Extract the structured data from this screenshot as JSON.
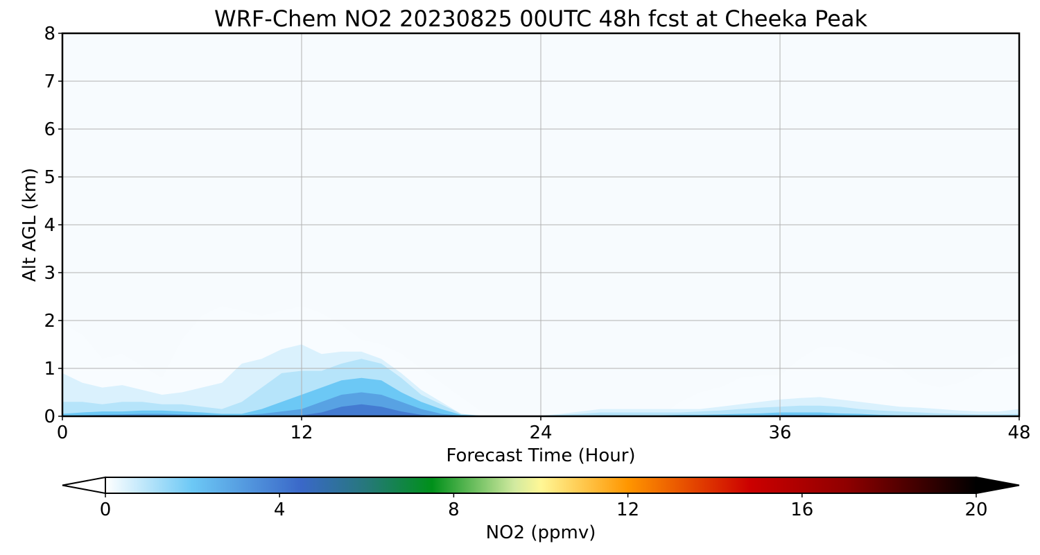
{
  "chart_data": {
    "type": "heatmap",
    "title": "WRF-Chem NO2  20230825 00UTC 48h fcst at Cheeka Peak",
    "xlabel": "Forecast Time (Hour)",
    "ylabel": "Alt AGL (km)",
    "xlim": [
      0,
      48
    ],
    "ylim": [
      0,
      8
    ],
    "xticks": [
      0,
      12,
      24,
      36,
      48
    ],
    "yticks": [
      0,
      1,
      2,
      3,
      4,
      5,
      6,
      7,
      8
    ],
    "grid": true,
    "colorbar": {
      "label": "NO2  (ppmv)",
      "min": 0,
      "max": 20,
      "ticks": [
        0,
        4,
        8,
        12,
        16,
        20
      ],
      "extend": "both",
      "stops": [
        {
          "v": 0,
          "c": "#ffffff"
        },
        {
          "v": 2,
          "c": "#6cc8f5"
        },
        {
          "v": 4.5,
          "c": "#3a68c8"
        },
        {
          "v": 6,
          "c": "#26787a"
        },
        {
          "v": 7.5,
          "c": "#00901a"
        },
        {
          "v": 9.4,
          "c": "#d2eaa0"
        },
        {
          "v": 10,
          "c": "#fff796"
        },
        {
          "v": 12,
          "c": "#ff9600"
        },
        {
          "v": 14.8,
          "c": "#cc0000"
        },
        {
          "v": 17,
          "c": "#900000"
        },
        {
          "v": 20,
          "c": "#000000"
        }
      ]
    },
    "contours": [
      {
        "level": 0.1,
        "x": [
          0,
          1,
          2,
          3,
          4,
          5,
          6,
          7,
          8,
          9,
          10,
          11,
          12,
          13,
          14,
          15,
          16,
          17,
          18,
          19,
          20,
          21,
          22,
          23,
          24,
          25,
          26,
          27,
          28,
          29,
          30,
          31,
          32,
          33,
          34,
          35,
          36,
          37,
          38,
          39,
          40,
          41,
          42,
          43,
          44,
          45,
          46,
          47,
          48
        ],
        "top": [
          1.95,
          1.7,
          1.2,
          1.3,
          1.05,
          0.8,
          1.6,
          2.1,
          2.3,
          2.2,
          2.1,
          2.2,
          2.3,
          2.15,
          1.9,
          1.6,
          1.5,
          1.3,
          1.0,
          0.7,
          0.4,
          0.1,
          0.02,
          0.02,
          0.02,
          0.02,
          0.02,
          0.02,
          0.02,
          0.02,
          0.02,
          0.3,
          0.5,
          0.6,
          0.8,
          0.85,
          0.85,
          1.2,
          1.45,
          1.45,
          1.3,
          1.2,
          1.0,
          0.7,
          0.6,
          0.7,
          0.9,
          1.2,
          1.3
        ]
      },
      {
        "level": 0.5,
        "x": [
          0,
          1,
          2,
          3,
          4,
          5,
          6,
          7,
          8,
          9,
          10,
          11,
          12,
          13,
          14,
          15,
          16,
          17,
          18,
          19,
          20,
          21,
          22,
          23,
          24,
          25,
          26,
          27,
          28,
          29,
          30,
          31,
          32,
          33,
          34,
          35,
          36,
          37,
          38,
          39,
          40,
          41,
          42,
          43,
          44,
          45,
          46,
          47,
          48
        ],
        "top": [
          0.9,
          0.7,
          0.6,
          0.65,
          0.55,
          0.45,
          0.5,
          0.6,
          0.7,
          1.1,
          1.2,
          1.4,
          1.5,
          1.3,
          1.35,
          1.35,
          1.2,
          0.9,
          0.55,
          0.3,
          0.05,
          0.01,
          0.01,
          0.01,
          0.01,
          0.05,
          0.1,
          0.15,
          0.15,
          0.15,
          0.15,
          0.15,
          0.15,
          0.2,
          0.25,
          0.3,
          0.35,
          0.38,
          0.4,
          0.35,
          0.3,
          0.25,
          0.2,
          0.18,
          0.15,
          0.12,
          0.1,
          0.1,
          0.15
        ]
      },
      {
        "level": 1.0,
        "x": [
          0,
          1,
          2,
          3,
          4,
          5,
          6,
          7,
          8,
          9,
          10,
          11,
          12,
          13,
          14,
          15,
          16,
          17,
          18,
          19,
          20,
          21,
          22,
          23,
          24,
          25,
          26,
          27,
          28,
          29,
          30,
          31,
          32,
          33,
          34,
          35,
          36,
          37,
          38,
          39,
          40,
          41,
          42,
          43,
          44,
          45,
          46,
          47,
          48
        ],
        "top": [
          0.3,
          0.3,
          0.25,
          0.3,
          0.3,
          0.25,
          0.25,
          0.2,
          0.15,
          0.3,
          0.6,
          0.9,
          0.95,
          0.95,
          1.1,
          1.2,
          1.1,
          0.8,
          0.45,
          0.25,
          0.05,
          0.01,
          0.01,
          0.01,
          0.01,
          0.03,
          0.05,
          0.08,
          0.08,
          0.08,
          0.08,
          0.08,
          0.1,
          0.12,
          0.15,
          0.18,
          0.2,
          0.22,
          0.22,
          0.2,
          0.15,
          0.12,
          0.1,
          0.08,
          0.06,
          0.05,
          0.04,
          0.04,
          0.05
        ]
      },
      {
        "level": 2.0,
        "x": [
          0,
          1,
          2,
          3,
          4,
          5,
          6,
          7,
          8,
          9,
          10,
          11,
          12,
          13,
          14,
          15,
          16,
          17,
          18,
          19,
          20,
          21,
          22,
          23,
          24,
          25,
          26,
          27,
          28,
          29,
          30,
          31,
          32,
          33,
          34,
          35,
          36,
          37,
          38,
          39,
          40,
          41,
          42,
          43,
          44,
          45,
          46,
          47,
          48
        ],
        "top": [
          0.05,
          0.08,
          0.1,
          0.1,
          0.12,
          0.12,
          0.1,
          0.08,
          0.05,
          0.05,
          0.15,
          0.3,
          0.45,
          0.6,
          0.75,
          0.8,
          0.75,
          0.5,
          0.3,
          0.15,
          0.03,
          0.01,
          0.01,
          0.01,
          0.01,
          0.01,
          0.01,
          0.02,
          0.02,
          0.02,
          0.02,
          0.03,
          0.03,
          0.04,
          0.05,
          0.06,
          0.08,
          0.08,
          0.08,
          0.06,
          0.05,
          0.03,
          0.02,
          0.02,
          0.01,
          0.01,
          0.01,
          0.01,
          0.01
        ]
      },
      {
        "level": 3.0,
        "x": [
          0,
          1,
          2,
          3,
          4,
          5,
          6,
          7,
          8,
          9,
          10,
          11,
          12,
          13,
          14,
          15,
          16,
          17,
          18,
          19,
          20,
          21,
          22,
          23,
          24,
          25,
          26,
          27,
          28,
          29,
          30,
          31,
          32,
          33,
          34,
          35,
          36,
          37,
          38,
          39,
          40,
          41,
          42,
          43,
          44,
          45,
          46,
          47,
          48
        ],
        "top": [
          0.01,
          0.02,
          0.03,
          0.04,
          0.05,
          0.05,
          0.04,
          0.03,
          0.02,
          0.02,
          0.05,
          0.1,
          0.15,
          0.3,
          0.45,
          0.5,
          0.45,
          0.3,
          0.15,
          0.05,
          0.01,
          0.0,
          0.0,
          0.0,
          0.0,
          0.0,
          0.0,
          0.0,
          0.0,
          0.0,
          0.0,
          0.0,
          0.0,
          0.01,
          0.01,
          0.02,
          0.03,
          0.03,
          0.03,
          0.02,
          0.01,
          0.0,
          0.0,
          0.0,
          0.0,
          0.0,
          0.0,
          0.0,
          0.0
        ]
      },
      {
        "level": 4.0,
        "x": [
          0,
          1,
          2,
          3,
          4,
          5,
          6,
          7,
          8,
          9,
          10,
          11,
          12,
          13,
          14,
          15,
          16,
          17,
          18,
          19,
          20,
          21,
          22,
          23,
          24,
          25,
          26,
          27,
          28,
          29,
          30,
          31,
          32,
          33,
          34,
          35,
          36,
          37,
          38,
          39,
          40,
          41,
          42,
          43,
          44,
          45,
          46,
          47,
          48
        ],
        "top": [
          0.0,
          0.0,
          0.0,
          0.0,
          0.01,
          0.01,
          0.0,
          0.0,
          0.0,
          0.0,
          0.0,
          0.0,
          0.02,
          0.08,
          0.2,
          0.25,
          0.2,
          0.1,
          0.03,
          0.0,
          0.0,
          0.0,
          0.0,
          0.0,
          0.0,
          0.0,
          0.0,
          0.0,
          0.0,
          0.0,
          0.0,
          0.0,
          0.0,
          0.0,
          0.0,
          0.0,
          0.0,
          0.0,
          0.0,
          0.0,
          0.0,
          0.0,
          0.0,
          0.0,
          0.0,
          0.0,
          0.0,
          0.0,
          0.0
        ]
      }
    ]
  }
}
